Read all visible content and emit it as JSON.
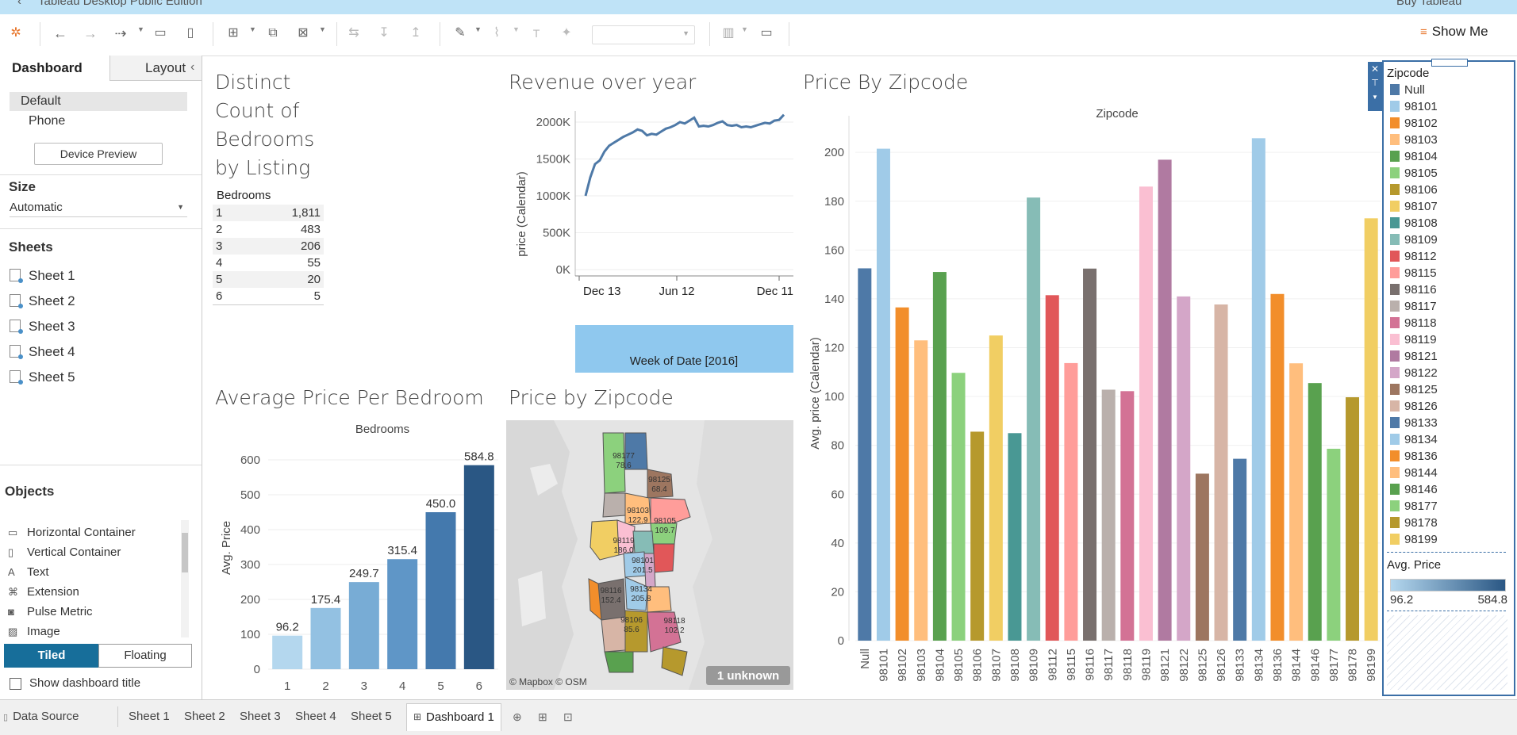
{
  "window": {
    "title": "Tableau Desktop Public Edition",
    "buy_label": "Buy Tableau"
  },
  "toolbar": {
    "show_me_label": "Show Me",
    "icons": [
      "tableau-logo-icon",
      "undo-icon",
      "redo-icon",
      "replay-icon",
      "save-icon",
      "new-data-source-icon",
      "new-worksheet-icon",
      "duplicate-icon",
      "clear-icon",
      "swap-icon",
      "sort-asc-icon",
      "sort-desc-icon",
      "highlight-icon",
      "paperclip-icon",
      "text-icon",
      "pin-icon",
      "fit-select",
      "view-cards-icon",
      "presentation-icon"
    ]
  },
  "left_panel": {
    "tabs": [
      "Dashboard",
      "Layout"
    ],
    "devices": [
      "Default",
      "Phone"
    ],
    "device_preview_label": "Device Preview",
    "size_heading": "Size",
    "size_value": "Automatic",
    "sheets_heading": "Sheets",
    "sheets": [
      "Sheet 1",
      "Sheet 2",
      "Sheet 3",
      "Sheet 4",
      "Sheet 5"
    ],
    "objects_heading": "Objects",
    "objects": [
      {
        "label": "Horizontal Container",
        "icon": "horizontal-container-icon"
      },
      {
        "label": "Vertical Container",
        "icon": "vertical-container-icon"
      },
      {
        "label": "Text",
        "icon": "text-icon"
      },
      {
        "label": "Extension",
        "icon": "extension-icon"
      },
      {
        "label": "Pulse Metric",
        "icon": "pulse-metric-icon"
      },
      {
        "label": "Image",
        "icon": "image-icon"
      }
    ],
    "tiled_label": "Tiled",
    "floating_label": "Floating",
    "show_title_label": "Show dashboard title"
  },
  "bottom_tabs": {
    "data_source": "Data Source",
    "sheets": [
      "Sheet 1",
      "Sheet 2",
      "Sheet 3",
      "Sheet 4",
      "Sheet 5"
    ],
    "dashboard": "Dashboard 1"
  },
  "dashboard": {
    "bedrooms_table": {
      "title_lines": [
        "Distinct",
        "Count of",
        "Bedrooms",
        "by Listing"
      ],
      "header": "Bedrooms",
      "rows": [
        [
          "1",
          "1,811"
        ],
        [
          "2",
          "483"
        ],
        [
          "3",
          "206"
        ],
        [
          "4",
          "55"
        ],
        [
          "5",
          "20"
        ],
        [
          "6",
          "5"
        ]
      ]
    },
    "map": {
      "title": "Price by Zipcode",
      "attribution": "© Mapbox © OSM",
      "unknown_badge": "1 unknown",
      "labels": [
        {
          "zip": "98177",
          "value": "78.6"
        },
        {
          "zip": "98125",
          "value": "68.4"
        },
        {
          "zip": "98103",
          "value": "122.9"
        },
        {
          "zip": "98105",
          "value": "109.7"
        },
        {
          "zip": "98119",
          "value": "186.0"
        },
        {
          "zip": "98101",
          "value": "201.5"
        },
        {
          "zip": "98116",
          "value": "152.4"
        },
        {
          "zip": "98134",
          "value": "205.8"
        },
        {
          "zip": "98106",
          "value": "85.6"
        },
        {
          "zip": "98118",
          "value": "102.2"
        }
      ]
    },
    "legend": {
      "title": "Zipcode",
      "items": [
        {
          "label": "Null",
          "color": "#4e79a7"
        },
        {
          "label": "98101",
          "color": "#a0cbe8"
        },
        {
          "label": "98102",
          "color": "#f28e2b"
        },
        {
          "label": "98103",
          "color": "#ffbe7d"
        },
        {
          "label": "98104",
          "color": "#59a14f"
        },
        {
          "label": "98105",
          "color": "#8cd17d"
        },
        {
          "label": "98106",
          "color": "#b6992d"
        },
        {
          "label": "98107",
          "color": "#f1ce63"
        },
        {
          "label": "98108",
          "color": "#499894"
        },
        {
          "label": "98109",
          "color": "#86bcb6"
        },
        {
          "label": "98112",
          "color": "#e15759"
        },
        {
          "label": "98115",
          "color": "#ff9d9a"
        },
        {
          "label": "98116",
          "color": "#79706e"
        },
        {
          "label": "98117",
          "color": "#bab0ac"
        },
        {
          "label": "98118",
          "color": "#d37295"
        },
        {
          "label": "98119",
          "color": "#fabfd2"
        },
        {
          "label": "98121",
          "color": "#b07aa1"
        },
        {
          "label": "98122",
          "color": "#d4a6c8"
        },
        {
          "label": "98125",
          "color": "#9d7660"
        },
        {
          "label": "98126",
          "color": "#d7b5a6"
        },
        {
          "label": "98133",
          "color": "#4e79a7"
        },
        {
          "label": "98134",
          "color": "#a0cbe8"
        },
        {
          "label": "98136",
          "color": "#f28e2b"
        },
        {
          "label": "98144",
          "color": "#ffbe7d"
        },
        {
          "label": "98146",
          "color": "#59a14f"
        },
        {
          "label": "98177",
          "color": "#8cd17d"
        },
        {
          "label": "98178",
          "color": "#b6992d"
        },
        {
          "label": "98199",
          "color": "#f1ce63"
        }
      ],
      "avg_price_title": "Avg. Price",
      "avg_price_min": "96.2",
      "avg_price_max": "584.8"
    }
  },
  "chart_data": [
    {
      "id": "revenue",
      "type": "line",
      "title": "Revenue over year",
      "xlabel": "Week of Date [2016]",
      "ylabel": "price (Calendar)",
      "x_ticks": [
        "Dec 13",
        "Jun 12",
        "Dec 11"
      ],
      "y_ticks": [
        "0K",
        "500K",
        "1000K",
        "1500K",
        "2000K"
      ],
      "ylim": [
        0,
        2150000
      ],
      "values": [
        1000000,
        1250000,
        1430000,
        1480000,
        1600000,
        1680000,
        1720000,
        1760000,
        1800000,
        1830000,
        1860000,
        1900000,
        1880000,
        1820000,
        1840000,
        1830000,
        1870000,
        1910000,
        1930000,
        1960000,
        2000000,
        1980000,
        2020000,
        2060000,
        1940000,
        1950000,
        1940000,
        1960000,
        1990000,
        2010000,
        1960000,
        1950000,
        1960000,
        1930000,
        1940000,
        1930000,
        1950000,
        1970000,
        1990000,
        1980000,
        2020000,
        2030000,
        2100000
      ]
    },
    {
      "id": "avg_bedroom",
      "type": "bar",
      "title": "Average Price Per Bedroom",
      "xlabel": "Bedrooms",
      "ylabel": "Avg. Price",
      "categories": [
        "1",
        "2",
        "3",
        "4",
        "5",
        "6"
      ],
      "values": [
        96.2,
        175.4,
        249.7,
        315.4,
        450.0,
        584.8
      ],
      "labels": [
        "96.2",
        "175.4",
        "249.7",
        "315.4",
        "450.0",
        "584.8"
      ],
      "colors": [
        "#b4d7ee",
        "#93c1e2",
        "#78acd5",
        "#5f96c7",
        "#4479ad",
        "#2a5784"
      ],
      "y_ticks": [
        "0",
        "100",
        "200",
        "300",
        "400",
        "500",
        "600"
      ],
      "ylim": [
        0,
        650
      ]
    },
    {
      "id": "zipcode",
      "type": "bar",
      "title": "Price By Zipcode",
      "xlabel": "Zipcode",
      "ylabel": "Avg. price (Calendar)",
      "categories": [
        "Null",
        "98101",
        "98102",
        "98103",
        "98104",
        "98105",
        "98106",
        "98107",
        "98108",
        "98109",
        "98112",
        "98115",
        "98116",
        "98117",
        "98118",
        "98119",
        "98121",
        "98122",
        "98125",
        "98126",
        "98133",
        "98134",
        "98136",
        "98144",
        "98146",
        "98177",
        "98178",
        "98199"
      ],
      "values": [
        152.5,
        201.5,
        136.5,
        123,
        151,
        109.7,
        85.6,
        125,
        85,
        181.5,
        141.5,
        113.7,
        152.4,
        102.8,
        102.2,
        186.0,
        197,
        141,
        68.4,
        137.7,
        74.5,
        205.8,
        142,
        113.6,
        105.5,
        78.6,
        99.7,
        173
      ],
      "y_ticks": [
        "0",
        "20",
        "40",
        "60",
        "80",
        "100",
        "120",
        "140",
        "160",
        "180",
        "200"
      ],
      "ylim": [
        0,
        215
      ]
    }
  ]
}
